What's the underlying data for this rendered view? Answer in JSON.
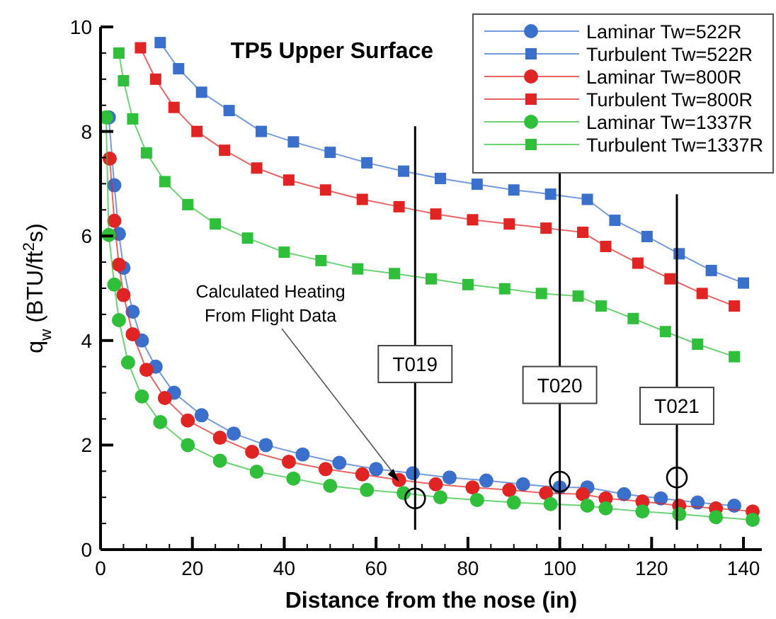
{
  "chart_data": {
    "type": "line",
    "title": "TP5 Upper Surface",
    "xlabel": "Distance from the nose (in)",
    "ylabel": "q$_{w}$ (BTU/ft$^{2}$s)",
    "xlim": [
      0,
      144
    ],
    "ylim": [
      0,
      10
    ],
    "xticks": [
      0,
      20,
      40,
      60,
      80,
      100,
      120,
      140
    ],
    "yticks": [
      0,
      2,
      4,
      6,
      8,
      10
    ],
    "grid": false,
    "legend": "top right",
    "line_style": "solid",
    "series": [
      {
        "name": "Laminar Tw=522R",
        "color": "#3b6fcc",
        "marker": "circle",
        "x": [
          1.8,
          3,
          4,
          5,
          7,
          9,
          12,
          16,
          22,
          29,
          36,
          44,
          52,
          60,
          68,
          76,
          84,
          92,
          100,
          106,
          114,
          122,
          130,
          138
        ],
        "values": [
          8.27,
          6.97,
          6.04,
          5.39,
          4.55,
          4.0,
          3.5,
          3.0,
          2.57,
          2.22,
          2.0,
          1.82,
          1.66,
          1.54,
          1.46,
          1.38,
          1.32,
          1.25,
          1.19,
          1.19,
          1.06,
          0.98,
          0.9,
          0.84
        ]
      },
      {
        "name": "Turbulent Tw=522R",
        "color": "#3b6fcc",
        "marker": "square",
        "x": [
          13,
          17,
          22,
          28,
          35,
          42,
          50,
          58,
          66,
          74,
          82,
          90,
          98,
          106,
          112,
          119,
          126,
          133,
          140
        ],
        "values": [
          9.7,
          9.2,
          8.75,
          8.4,
          8.0,
          7.8,
          7.6,
          7.4,
          7.24,
          7.1,
          6.99,
          6.88,
          6.8,
          6.7,
          6.3,
          5.99,
          5.66,
          5.34,
          5.1
        ]
      },
      {
        "name": "Laminar Tw=800R",
        "color": "#e02424",
        "marker": "circle",
        "x": [
          2,
          3,
          4,
          5,
          7,
          10,
          14,
          19,
          26,
          33,
          41,
          49,
          57,
          65,
          73,
          81,
          89,
          97,
          105,
          110,
          118,
          126,
          134,
          142
        ],
        "values": [
          7.48,
          6.29,
          5.45,
          4.87,
          4.12,
          3.44,
          2.9,
          2.47,
          2.14,
          1.87,
          1.68,
          1.54,
          1.44,
          1.33,
          1.25,
          1.19,
          1.14,
          1.08,
          1.06,
          0.98,
          0.92,
          0.84,
          0.79,
          0.73
        ]
      },
      {
        "name": "Turbulent Tw=800R",
        "color": "#e02424",
        "marker": "square",
        "x": [
          8.7,
          12,
          16,
          21,
          27,
          34,
          41,
          49,
          57,
          65,
          73,
          81,
          89,
          97,
          105,
          110,
          117,
          124,
          131,
          138
        ],
        "values": [
          9.6,
          9.0,
          8.46,
          8.0,
          7.64,
          7.3,
          7.07,
          6.88,
          6.7,
          6.56,
          6.42,
          6.31,
          6.23,
          6.15,
          6.07,
          5.8,
          5.48,
          5.18,
          4.9,
          4.66
        ]
      },
      {
        "name": "Laminar Tw=1337R",
        "color": "#2fbf3a",
        "marker": "circle",
        "x": [
          1.2,
          1.8,
          3,
          4,
          6,
          9,
          13,
          19,
          26,
          34,
          42,
          50,
          58,
          66,
          74,
          82,
          90,
          98,
          106,
          110,
          118,
          126,
          134,
          142
        ],
        "values": [
          8.27,
          6.02,
          5.07,
          4.39,
          3.58,
          2.93,
          2.44,
          2.0,
          1.7,
          1.49,
          1.36,
          1.22,
          1.14,
          1.08,
          1.0,
          0.95,
          0.9,
          0.87,
          0.84,
          0.79,
          0.73,
          0.68,
          0.62,
          0.57
        ]
      },
      {
        "name": "Turbulent Tw=1337R",
        "color": "#2fbf3a",
        "marker": "square",
        "x": [
          4,
          5,
          7,
          10,
          14,
          19,
          25,
          32,
          40,
          48,
          56,
          64,
          72,
          80,
          88,
          96,
          104,
          109,
          116,
          123,
          130,
          138
        ],
        "values": [
          9.5,
          8.97,
          8.24,
          7.59,
          7.04,
          6.6,
          6.23,
          5.96,
          5.69,
          5.53,
          5.37,
          5.28,
          5.18,
          5.07,
          4.99,
          4.9,
          4.85,
          4.66,
          4.42,
          4.17,
          3.93,
          3.69
        ]
      },
      {
        "type": "scatter",
        "color": "#000000",
        "marker": "circle",
        "x": [
          68.5,
          100,
          125.5
        ],
        "values": [
          0.98,
          1.3,
          1.38
        ]
      }
    ],
    "ref_lines": [
      {
        "axis": "x",
        "value": 68.5,
        "label": "T019"
      },
      {
        "axis": "x",
        "value": 100,
        "label": "T020"
      },
      {
        "axis": "x",
        "value": 125.5,
        "label": "T021"
      }
    ],
    "annotations": [
      {
        "text": "Calculated Heating\nFrom Flight Data",
        "x": 65,
        "y": 1.3
      }
    ]
  }
}
